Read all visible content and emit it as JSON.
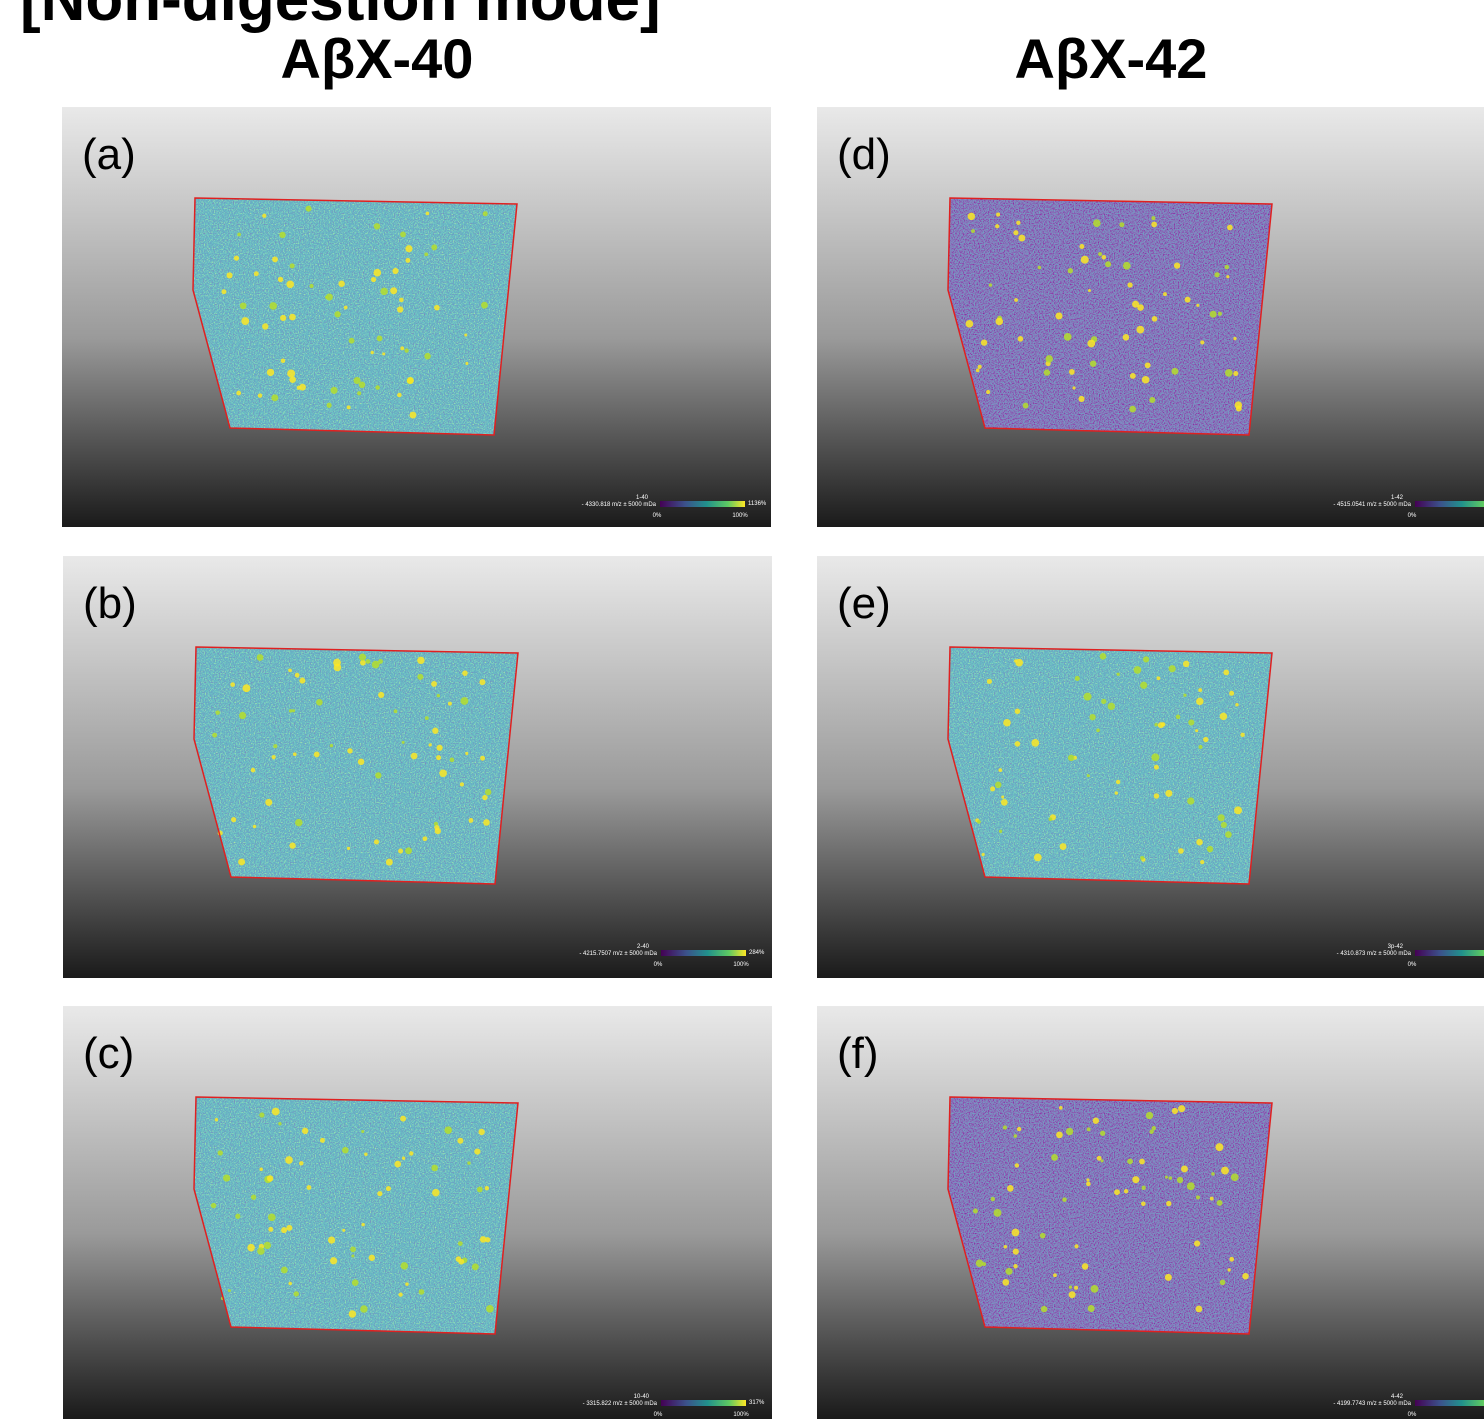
{
  "header": {
    "title": "[Non-digestion mode]",
    "columns": [
      "AβX-40",
      "AβX-42"
    ]
  },
  "panels": [
    {
      "label": "(a)",
      "colorbar": {
        "name": "1-40",
        "mz": "- 4330.818 m/z ± 5000 mDa",
        "min": "0%",
        "max": "100%",
        "peak": "1136%"
      }
    },
    {
      "label": "(b)",
      "colorbar": {
        "name": "2-40",
        "mz": "- 4215.7507 m/z ± 5000 mDa",
        "min": "0%",
        "max": "100%",
        "peak": "284%"
      }
    },
    {
      "label": "(c)",
      "colorbar": {
        "name": "10-40",
        "mz": "- 3315.822 m/z ± 5000 mDa",
        "min": "0%",
        "max": "100%",
        "peak": "317%"
      }
    },
    {
      "label": "(d)",
      "colorbar": {
        "name": "1-42",
        "mz": "- 4515.0541 m/z ± 5000 mDa",
        "min": "0%"
      }
    },
    {
      "label": "(e)",
      "colorbar": {
        "name": "3p-42",
        "mz": "- 4310.873 m/z ± 5000 mDa",
        "min": "0%"
      }
    },
    {
      "label": "(f)",
      "colorbar": {
        "name": "4-42",
        "mz": "- 4199.7743 m/z ± 5000 mDa",
        "min": "0%"
      }
    }
  ]
}
